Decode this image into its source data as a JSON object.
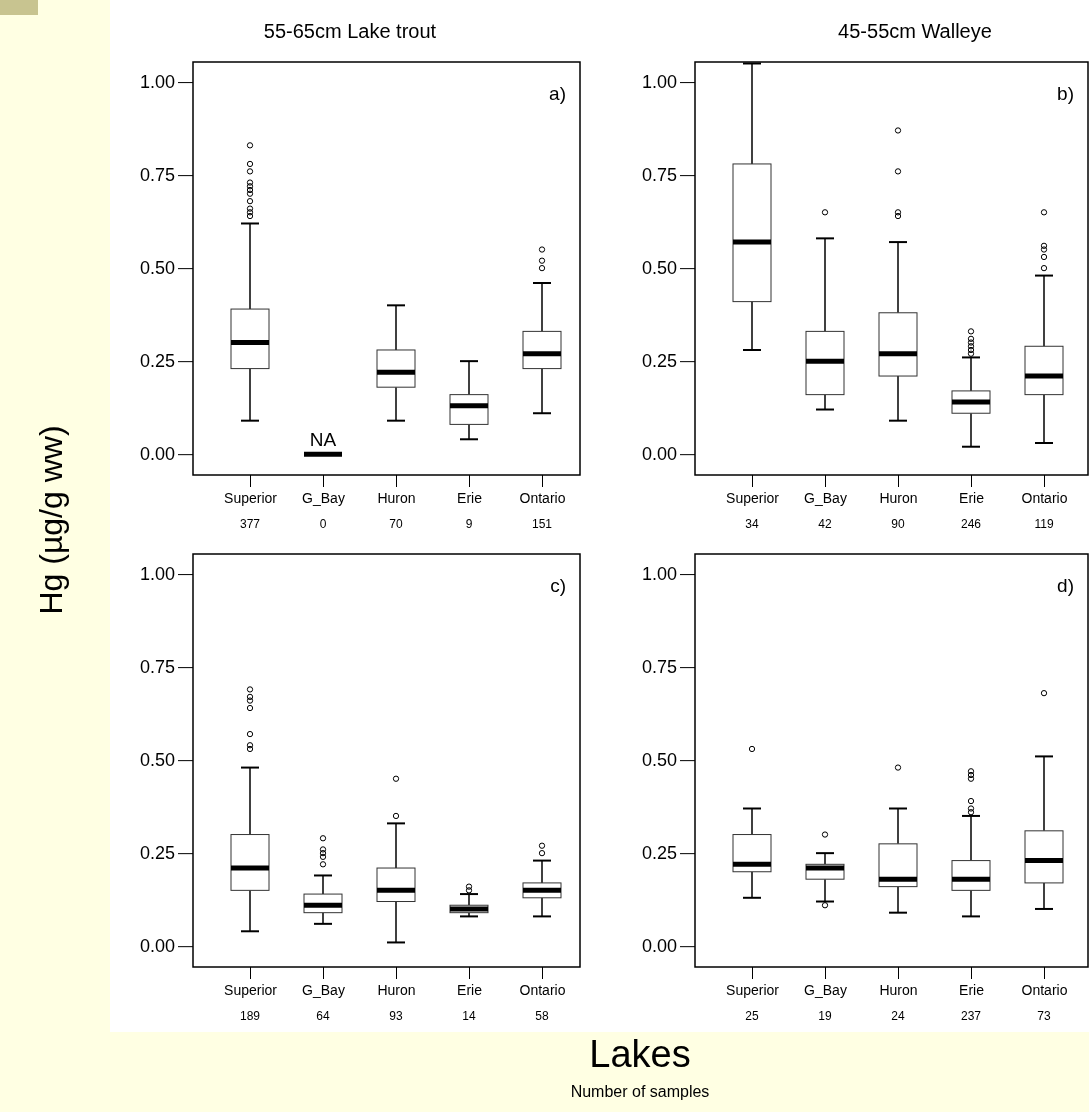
{
  "chart_data": [
    {
      "type": "box",
      "title": "55-65cm Lake trout",
      "ylabel": "Hg (µg/g ww)",
      "categories": [
        "Superior",
        "G_Bay",
        "Huron",
        "Erie",
        "Ontario"
      ],
      "boxes": [
        {
          "low": 0.09,
          "q1": 0.23,
          "median": 0.3,
          "q3": 0.39,
          "high": 0.62,
          "outliers": [
            0.83,
            0.78,
            0.76,
            0.73,
            0.72,
            0.71,
            0.7,
            0.68,
            0.66,
            0.65,
            0.64
          ]
        },
        {
          "low": 0,
          "q1": 0,
          "median": 0,
          "q3": 0,
          "high": 0
        },
        {
          "low": 0.09,
          "q1": 0.18,
          "median": 0.22,
          "q3": 0.28,
          "high": 0.4
        },
        {
          "low": 0.04,
          "q1": 0.08,
          "median": 0.13,
          "q3": 0.16,
          "high": 0.25
        },
        {
          "low": 0.11,
          "q1": 0.23,
          "median": 0.27,
          "q3": 0.33,
          "high": 0.46,
          "outliers": [
            0.55,
            0.52,
            0.5
          ]
        }
      ],
      "ylim": [
        -0.056,
        1.054
      ],
      "yticks": [
        {
          "value": 0,
          "label": "0.00"
        },
        {
          "value": 0.25,
          "label": "0.25"
        },
        {
          "value": 0.5,
          "label": "0.50"
        },
        {
          "value": 0.75,
          "label": "0.75"
        },
        {
          "value": 1,
          "label": "1.00"
        }
      ],
      "marker": "circle",
      "annotations": [
        "a)",
        {
          "text": "NA",
          "x": "G_Bay",
          "y": 0
        },
        "377",
        "0",
        "70",
        "9",
        "151"
      ]
    },
    {
      "type": "box",
      "title": "45-55cm Walleye",
      "categories": [
        "Superior",
        "G_Bay",
        "Huron",
        "Erie",
        "Ontario"
      ],
      "boxes": [
        {
          "low": 0.28,
          "q1": 0.41,
          "median": 0.57,
          "q3": 0.78,
          "high": 1.05
        },
        {
          "low": 0.12,
          "q1": 0.16,
          "median": 0.25,
          "q3": 0.33,
          "high": 0.58,
          "outliers": [
            0.65
          ]
        },
        {
          "low": 0.09,
          "q1": 0.21,
          "median": 0.27,
          "q3": 0.38,
          "high": 0.57,
          "outliers": [
            0.87,
            0.76,
            0.65,
            0.64
          ]
        },
        {
          "low": 0.02,
          "q1": 0.11,
          "median": 0.14,
          "q3": 0.17,
          "high": 0.26,
          "outliers": [
            0.33,
            0.31,
            0.3,
            0.29,
            0.28,
            0.27
          ]
        },
        {
          "low": 0.03,
          "q1": 0.16,
          "median": 0.21,
          "q3": 0.29,
          "high": 0.48,
          "outliers": [
            0.65,
            0.56,
            0.55,
            0.53,
            0.5
          ]
        }
      ],
      "ylim": [
        -0.056,
        1.054
      ],
      "yticks": [
        {
          "value": 0,
          "label": "0.00"
        },
        {
          "value": 0.25,
          "label": "0.25"
        },
        {
          "value": 0.5,
          "label": "0.50"
        },
        {
          "value": 0.75,
          "label": "0.75"
        },
        {
          "value": 1,
          "label": "1.00"
        }
      ],
      "marker": "circle",
      "annotations": [
        "b)",
        "34",
        "42",
        "90",
        "246",
        "119"
      ]
    },
    {
      "type": "box",
      "xlabel": "Lakes",
      "categories": [
        "Superior",
        "G_Bay",
        "Huron",
        "Erie",
        "Ontario"
      ],
      "boxes": [
        {
          "low": 0.04,
          "q1": 0.15,
          "median": 0.21,
          "q3": 0.3,
          "high": 0.48,
          "outliers": [
            0.69,
            0.67,
            0.66,
            0.64,
            0.57,
            0.54,
            0.53
          ]
        },
        {
          "low": 0.06,
          "q1": 0.09,
          "median": 0.11,
          "q3": 0.14,
          "high": 0.19,
          "outliers": [
            0.29,
            0.26,
            0.25,
            0.24,
            0.22
          ]
        },
        {
          "low": 0.01,
          "q1": 0.12,
          "median": 0.15,
          "q3": 0.21,
          "high": 0.33,
          "outliers": [
            0.45,
            0.35
          ]
        },
        {
          "low": 0.08,
          "q1": 0.09,
          "median": 0.1,
          "q3": 0.11,
          "high": 0.14,
          "outliers": [
            0.16,
            0.15
          ]
        },
        {
          "low": 0.08,
          "q1": 0.13,
          "median": 0.15,
          "q3": 0.17,
          "high": 0.23,
          "outliers": [
            0.27,
            0.25
          ]
        }
      ],
      "ylim": [
        -0.056,
        1.054
      ],
      "yticks": [
        {
          "value": 0,
          "label": "0.00"
        },
        {
          "value": 0.25,
          "label": "0.25"
        },
        {
          "value": 0.5,
          "label": "0.50"
        },
        {
          "value": 0.75,
          "label": "0.75"
        },
        {
          "value": 1,
          "label": "1.00"
        }
      ],
      "marker": "circle",
      "annotations": [
        "c)",
        "189",
        "64",
        "93",
        "14",
        "58",
        "Number of samples"
      ]
    },
    {
      "type": "box",
      "categories": [
        "Superior",
        "G_Bay",
        "Huron",
        "Erie",
        "Ontario"
      ],
      "boxes": [
        {
          "low": 0.13,
          "q1": 0.2,
          "median": 0.22,
          "q3": 0.3,
          "high": 0.37,
          "outliers": [
            0.53
          ]
        },
        {
          "low": 0.12,
          "q1": 0.18,
          "median": 0.21,
          "q3": 0.22,
          "high": 0.25,
          "outliers": [
            0.3,
            0.11
          ]
        },
        {
          "low": 0.09,
          "q1": 0.16,
          "median": 0.18,
          "q3": 0.275,
          "high": 0.37,
          "outliers": [
            0.48
          ]
        },
        {
          "low": 0.08,
          "q1": 0.15,
          "median": 0.18,
          "q3": 0.23,
          "high": 0.35,
          "outliers": [
            0.47,
            0.46,
            0.45,
            0.39,
            0.37,
            0.36
          ]
        },
        {
          "low": 0.1,
          "q1": 0.17,
          "median": 0.23,
          "q3": 0.31,
          "high": 0.51,
          "outliers": [
            0.68
          ]
        }
      ],
      "ylim": [
        -0.056,
        1.054
      ],
      "yticks": [
        {
          "value": 0,
          "label": "0.00"
        },
        {
          "value": 0.25,
          "label": "0.25"
        },
        {
          "value": 0.5,
          "label": "0.50"
        },
        {
          "value": 0.75,
          "label": "0.75"
        },
        {
          "value": 1,
          "label": "1.00"
        }
      ],
      "marker": "circle",
      "annotations": [
        "d)",
        "25",
        "19",
        "24",
        "237",
        "73"
      ]
    }
  ]
}
